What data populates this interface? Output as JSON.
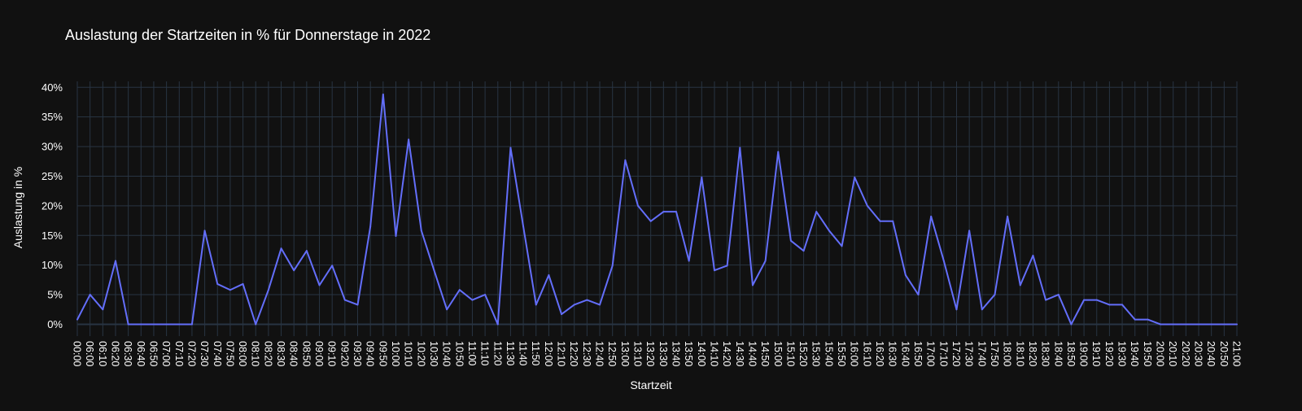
{
  "chart_data": {
    "type": "line",
    "title": "Auslastung der Startzeiten in % für Donnerstage in 2022",
    "xlabel": "Startzeit",
    "ylabel": "Auslastung in %",
    "ylim": [
      -0.02,
      0.41
    ],
    "yticks": [
      0,
      0.05,
      0.1,
      0.15,
      0.2,
      0.25,
      0.3,
      0.35,
      0.4
    ],
    "ytick_labels": [
      "0%",
      "5%",
      "10%",
      "15%",
      "20%",
      "25%",
      "30%",
      "35%",
      "40%"
    ],
    "grid": true,
    "colors": {
      "background": "#111111",
      "grid": "#283442",
      "line": "#636efa",
      "text": "#ffffff"
    },
    "categories": [
      "00:00",
      "06:00",
      "06:10",
      "06:20",
      "06:30",
      "06:40",
      "06:50",
      "07:00",
      "07:10",
      "07:20",
      "07:30",
      "07:40",
      "07:50",
      "08:00",
      "08:10",
      "08:20",
      "08:30",
      "08:40",
      "08:50",
      "09:00",
      "09:10",
      "09:20",
      "09:30",
      "09:40",
      "09:50",
      "10:00",
      "10:10",
      "10:20",
      "10:30",
      "10:40",
      "10:50",
      "11:00",
      "11:10",
      "11:20",
      "11:30",
      "11:40",
      "11:50",
      "12:00",
      "12:10",
      "12:20",
      "12:30",
      "12:40",
      "12:50",
      "13:00",
      "13:10",
      "13:20",
      "13:30",
      "13:40",
      "13:50",
      "14:00",
      "14:10",
      "14:20",
      "14:30",
      "14:40",
      "14:50",
      "15:00",
      "15:10",
      "15:20",
      "15:30",
      "15:40",
      "15:50",
      "16:00",
      "16:10",
      "16:20",
      "16:30",
      "16:40",
      "16:50",
      "17:00",
      "17:10",
      "17:20",
      "17:30",
      "17:40",
      "17:50",
      "18:00",
      "18:10",
      "18:20",
      "18:30",
      "18:40",
      "18:50",
      "19:00",
      "19:10",
      "19:20",
      "19:30",
      "19:40",
      "19:50",
      "20:00",
      "20:10",
      "20:20",
      "20:30",
      "20:40",
      "20:50",
      "21:00"
    ],
    "series": [
      {
        "values": [
          0.008,
          0.05,
          0.025,
          0.107,
          0.0,
          0.0,
          0.0,
          0.0,
          0.0,
          0.0,
          0.158,
          0.068,
          0.058,
          0.068,
          0.0,
          0.058,
          0.128,
          0.091,
          0.124,
          0.066,
          0.099,
          0.041,
          0.033,
          0.165,
          0.388,
          0.149,
          0.312,
          0.158,
          0.091,
          0.025,
          0.058,
          0.041,
          0.05,
          0.0,
          0.298,
          0.165,
          0.033,
          0.083,
          0.017,
          0.033,
          0.041,
          0.033,
          0.099,
          0.277,
          0.2,
          0.174,
          0.19,
          0.19,
          0.107,
          0.248,
          0.091,
          0.099,
          0.298,
          0.066,
          0.107,
          0.291,
          0.141,
          0.124,
          0.19,
          0.158,
          0.132,
          0.248,
          0.2,
          0.174,
          0.174,
          0.083,
          0.05,
          0.182,
          0.107,
          0.025,
          0.158,
          0.025,
          0.05,
          0.182,
          0.066,
          0.116,
          0.041,
          0.05,
          0.0,
          0.041,
          0.041,
          0.033,
          0.033,
          0.008,
          0.008,
          0.0,
          0.0,
          0.0,
          0.0,
          0.0,
          0.0,
          0.0
        ]
      }
    ]
  }
}
